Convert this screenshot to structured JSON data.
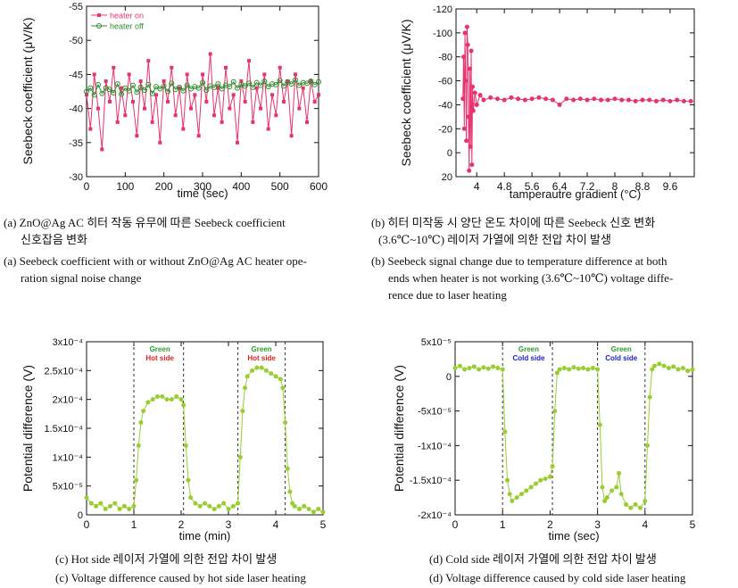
{
  "chart_data": [
    {
      "type": "scatter",
      "xlabel": "time (sec)",
      "ylabel": "Seebeck coefficient (μV/K)",
      "xlim": [
        0,
        600
      ],
      "ylim": [
        -55,
        -30
      ],
      "y_inverted": true,
      "xticks": [
        "0",
        "100",
        "200",
        "300",
        "400",
        "500",
        "600"
      ],
      "yticks": [
        "-55",
        "-50",
        "-45",
        "-40",
        "-35",
        "-30"
      ],
      "legend": "top-left",
      "series": [
        {
          "name": "heater on",
          "color": "#e8336e",
          "marker": "filled-square",
          "x": [
            0,
            10,
            20,
            30,
            40,
            50,
            60,
            70,
            80,
            90,
            100,
            110,
            120,
            130,
            140,
            150,
            160,
            170,
            180,
            190,
            200,
            210,
            220,
            230,
            240,
            250,
            260,
            270,
            280,
            290,
            300,
            310,
            320,
            330,
            340,
            350,
            360,
            370,
            380,
            390,
            400,
            410,
            420,
            430,
            440,
            450,
            460,
            470,
            480,
            490,
            500,
            510,
            520,
            530,
            540,
            550,
            560,
            570,
            580,
            590,
            600
          ],
          "y": [
            -42,
            -37,
            -45,
            -40,
            -34,
            -44,
            -41,
            -46,
            -38,
            -43,
            -39,
            -45,
            -41,
            -36,
            -44,
            -40,
            -47,
            -38,
            -42,
            -35,
            -44,
            -41,
            -46,
            -39,
            -43,
            -37,
            -45,
            -40,
            -42,
            -36,
            -45,
            -41,
            -48,
            -39,
            -43,
            -38,
            -46,
            -40,
            -42,
            -35,
            -44,
            -41,
            -47,
            -38,
            -43,
            -40,
            -45,
            -37,
            -42,
            -39,
            -46,
            -41,
            -44,
            -36,
            -45,
            -40,
            -43,
            -38,
            -44,
            -41,
            -42
          ]
        },
        {
          "name": "heater off",
          "color": "#2e8b2e",
          "marker": "open-circle",
          "x": [
            0,
            10,
            20,
            30,
            40,
            50,
            60,
            70,
            80,
            90,
            100,
            110,
            120,
            130,
            140,
            150,
            160,
            170,
            180,
            190,
            200,
            210,
            220,
            230,
            240,
            250,
            260,
            270,
            280,
            290,
            300,
            310,
            320,
            330,
            340,
            350,
            360,
            370,
            380,
            390,
            400,
            410,
            420,
            430,
            440,
            450,
            460,
            470,
            480,
            490,
            500,
            510,
            520,
            530,
            540,
            550,
            560,
            570,
            580,
            590,
            600
          ],
          "y": [
            -42.5,
            -43,
            -42,
            -43.5,
            -42.2,
            -43,
            -42.8,
            -42.3,
            -43.6,
            -42.1,
            -43,
            -42.6,
            -43.4,
            -42.4,
            -43.1,
            -42.7,
            -43.5,
            -42.2,
            -43.2,
            -42.9,
            -43.3,
            -42.5,
            -43.7,
            -42.8,
            -43.1,
            -42.6,
            -43.4,
            -42.9,
            -43.2,
            -43,
            -43.8,
            -42.7,
            -43.3,
            -43.1,
            -43.6,
            -42.9,
            -43.4,
            -43.2,
            -43.9,
            -43,
            -43.5,
            -43.3,
            -43.7,
            -43.1,
            -43.8,
            -43.4,
            -44,
            -43.2,
            -43.6,
            -43.5,
            -44.1,
            -43.3,
            -43.9,
            -43.6,
            -44.2,
            -43.4,
            -43.8,
            -43.7,
            -44,
            -43.5,
            -43.9
          ]
        }
      ]
    },
    {
      "type": "scatter",
      "xlabel": "tamperautre gradient (°C)",
      "ylabel": "Seebeck coefficient (μV/K)",
      "xlim": [
        3.4,
        10.3
      ],
      "ylim": [
        -120,
        20
      ],
      "y_inverted": true,
      "xticks": [
        "4",
        "4.8",
        "5.6",
        "6.4",
        "7.2",
        "8",
        "8.8",
        "9.6"
      ],
      "yticks": [
        "-120",
        "-100",
        "-80",
        "-60",
        "-40",
        "-20",
        "0",
        "20"
      ],
      "series": [
        {
          "name": "",
          "color": "#e8336e",
          "marker": "filled-circle",
          "x": [
            3.6,
            3.62,
            3.64,
            3.66,
            3.68,
            3.7,
            3.72,
            3.74,
            3.76,
            3.78,
            3.8,
            3.82,
            3.84,
            3.86,
            3.88,
            3.9,
            3.95,
            4.0,
            4.1,
            4.2,
            4.4,
            4.6,
            4.8,
            5.0,
            5.2,
            5.4,
            5.6,
            5.8,
            6.0,
            6.2,
            6.4,
            6.6,
            6.8,
            7.0,
            7.2,
            7.4,
            7.6,
            7.8,
            8.0,
            8.2,
            8.4,
            8.6,
            8.8,
            9.0,
            9.2,
            9.4,
            9.6,
            9.8,
            10.0,
            10.2
          ],
          "y": [
            -45,
            -80,
            -20,
            -100,
            -60,
            -10,
            -105,
            -90,
            -30,
            15,
            -70,
            -5,
            -85,
            10,
            -55,
            -35,
            -50,
            -40,
            -48,
            -44,
            -46,
            -45,
            -44,
            -46,
            -45,
            -44,
            -45,
            -46,
            -45,
            -44,
            -40,
            -45,
            -44,
            -45,
            -44,
            -45,
            -44,
            -44,
            -45,
            -44,
            -44,
            -43,
            -44,
            -44,
            -43,
            -44,
            -43,
            -44,
            -43,
            -43
          ]
        }
      ]
    },
    {
      "type": "line",
      "xlabel": "time (min)",
      "ylabel": "Potential difference (V)",
      "xlim": [
        0,
        5
      ],
      "ylim": [
        0,
        0.0003
      ],
      "xticks": [
        "0",
        "1",
        "2",
        "3",
        "4",
        "5"
      ],
      "yticks": [
        "0",
        "5x10⁻⁵",
        "1x10⁻⁴",
        "1.5x10⁻⁴",
        "2x10⁻⁴",
        "2.5x10⁻⁴",
        "3x10⁻⁴"
      ],
      "vlines": [
        1.0,
        2.05,
        3.2,
        4.2
      ],
      "annotations": [
        {
          "at_x": 1.55,
          "green": "Green",
          "side": "Hot side"
        },
        {
          "at_x": 3.7,
          "green": "Green",
          "side": "Hot side"
        }
      ],
      "series": [
        {
          "name": "",
          "color": "#9acd32",
          "x": [
            0,
            0.1,
            0.2,
            0.3,
            0.4,
            0.5,
            0.6,
            0.7,
            0.8,
            0.9,
            1.0,
            1.05,
            1.1,
            1.15,
            1.2,
            1.3,
            1.4,
            1.5,
            1.6,
            1.7,
            1.8,
            1.9,
            2.0,
            2.05,
            2.1,
            2.15,
            2.2,
            2.3,
            2.4,
            2.5,
            2.6,
            2.7,
            2.8,
            2.9,
            3.0,
            3.1,
            3.2,
            3.25,
            3.3,
            3.35,
            3.4,
            3.5,
            3.6,
            3.7,
            3.8,
            3.9,
            4.0,
            4.1,
            4.15,
            4.2,
            4.25,
            4.3,
            4.35,
            4.4,
            4.5,
            4.6,
            4.7,
            4.8,
            4.9,
            5.0
          ],
          "y": [
            3e-05,
            2e-05,
            1.5e-05,
            2e-05,
            1e-05,
            1.5e-05,
            2e-05,
            1e-05,
            1.5e-05,
            1e-05,
            1.5e-05,
            6e-05,
            0.00012,
            0.00016,
            0.00018,
            0.000195,
            0.0002,
            0.000205,
            0.000205,
            0.0002,
            0.0002,
            0.000205,
            0.0002,
            0.00019,
            0.00012,
            6e-05,
            3e-05,
            2e-05,
            1.5e-05,
            2e-05,
            1.5e-05,
            1e-05,
            1.5e-05,
            2e-05,
            1e-05,
            1.5e-05,
            2e-05,
            0.0001,
            0.00018,
            0.00022,
            0.00024,
            0.00025,
            0.000255,
            0.000255,
            0.00025,
            0.000245,
            0.00024,
            0.000235,
            0.00022,
            0.00016,
            8e-05,
            4e-05,
            2e-05,
            1.5e-05,
            1e-05,
            1.5e-05,
            1e-05,
            5e-06,
            1e-05,
            5e-06
          ]
        }
      ]
    },
    {
      "type": "line",
      "xlabel": "time (sec)",
      "ylabel": "Potential difference (V)",
      "xlim": [
        0,
        5
      ],
      "ylim": [
        -0.0002,
        5e-05
      ],
      "xticks": [
        "0",
        "1",
        "2",
        "3",
        "4",
        "5"
      ],
      "yticks": [
        "-2x10⁻⁴",
        "-1.5x10⁻⁴",
        "-1x10⁻⁴",
        "-5x10⁻⁵",
        "0",
        "5x10⁻⁵"
      ],
      "vlines": [
        1.0,
        2.05,
        3.0,
        4.0
      ],
      "annotations": [
        {
          "at_x": 1.55,
          "green": "Green",
          "side": "Cold side"
        },
        {
          "at_x": 3.5,
          "green": "Green",
          "side": "Cold side"
        }
      ],
      "series": [
        {
          "name": "",
          "color": "#9acd32",
          "x": [
            0,
            0.1,
            0.2,
            0.3,
            0.4,
            0.5,
            0.6,
            0.7,
            0.8,
            0.9,
            1.0,
            1.05,
            1.1,
            1.15,
            1.2,
            1.3,
            1.4,
            1.5,
            1.6,
            1.7,
            1.8,
            1.9,
            2.0,
            2.05,
            2.1,
            2.15,
            2.2,
            2.3,
            2.4,
            2.5,
            2.6,
            2.7,
            2.8,
            2.9,
            3.0,
            3.05,
            3.1,
            3.15,
            3.2,
            3.3,
            3.4,
            3.45,
            3.5,
            3.6,
            3.7,
            3.8,
            3.9,
            4.0,
            4.05,
            4.1,
            4.15,
            4.2,
            4.3,
            4.4,
            4.5,
            4.6,
            4.7,
            4.8,
            4.9,
            5.0
          ],
          "y": [
            1.2e-05,
            1.5e-05,
            1e-05,
            1.2e-05,
            1.4e-05,
            1e-05,
            1.3e-05,
            1.1e-05,
            1.4e-05,
            1.2e-05,
            1e-05,
            -8e-05,
            -0.00015,
            -0.00017,
            -0.00018,
            -0.000175,
            -0.00017,
            -0.000165,
            -0.00016,
            -0.000155,
            -0.00015,
            -0.000148,
            -0.000145,
            -0.00013,
            -5e-05,
            5e-06,
            1e-05,
            1.2e-05,
            1e-05,
            1.3e-05,
            1.1e-05,
            1.2e-05,
            1e-05,
            1.2e-05,
            1e-05,
            -7e-05,
            -0.00016,
            -0.00018,
            -0.000175,
            -0.000165,
            -0.00016,
            -0.00014,
            -0.00017,
            -0.000185,
            -0.00019,
            -0.000185,
            -0.00019,
            -0.00018,
            -0.0001,
            -3e-05,
            1e-05,
            1.5e-05,
            1.8e-05,
            1.5e-05,
            1.2e-05,
            1.4e-05,
            1e-05,
            1.2e-05,
            8e-06,
            1e-05
          ]
        }
      ]
    }
  ],
  "captions": {
    "a_ko_1": "(a) ZnO@Ag AC 히터 작동 유무에 따른 Seebeck coefficient",
    "a_ko_2": "신호잡음 변화",
    "a_en_1": "(a) Seebeck coefficient with or without ZnO@Ag AC heater ope-",
    "a_en_2": "ration signal noise change",
    "b_ko_1": "(b) 히터 미작동 시 양단 온도 차이에 따른 Seebeck 신호 변화",
    "b_ko_2": "(3.6℃~10℃) 레이저 가열에 의한 전압 차이 발생",
    "b_en_1": "(b) Seebeck signal change due to temperature difference at both",
    "b_en_2": "ends when heater is not working (3.6℃~10℃) voltage diffe-",
    "b_en_3": "rence due to laser heating",
    "c_ko": "(c) Hot side 레이저 가열에 의한 전압 차이 발생",
    "c_en": "(c) Voltage difference caused by hot side laser heating",
    "d_ko": "(d) Cold side 레이저 가열에 의한 전압 차이 발생",
    "d_en": "(d) Voltage difference caused by cold side laser heating"
  }
}
